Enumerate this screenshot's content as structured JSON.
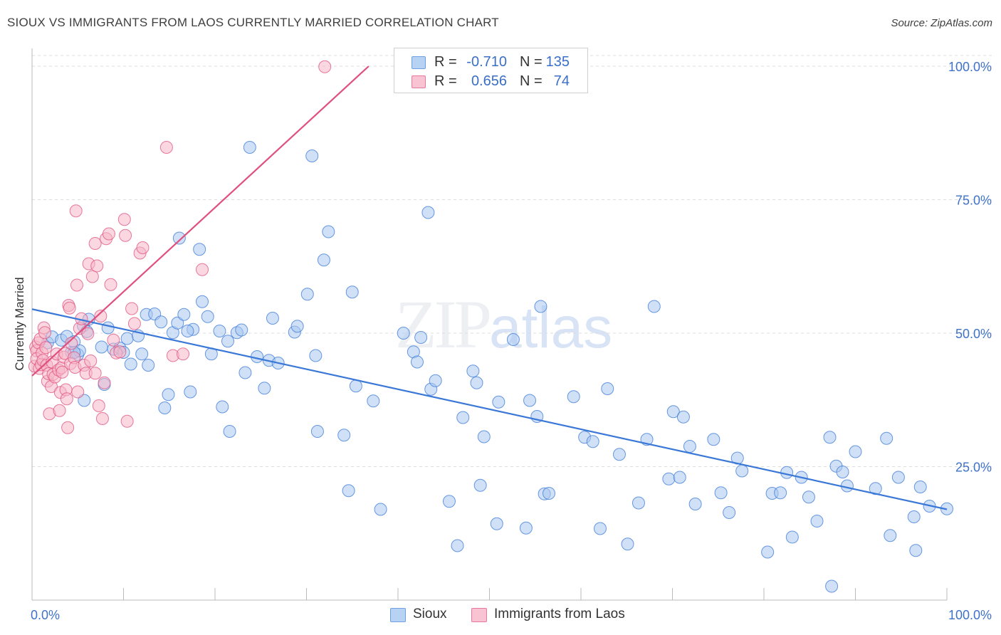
{
  "title": "SIOUX VS IMMIGRANTS FROM LAOS CURRENTLY MARRIED CORRELATION CHART",
  "source": "Source: ZipAtlas.com",
  "watermark": {
    "zip": "ZIP",
    "atlas": "atlas"
  },
  "stats": [
    {
      "r_label": "R =",
      "r_value": "-0.710",
      "n_label": "N =",
      "n_value": "135",
      "color": "#6f9fe0",
      "fill": "#b8d2f4"
    },
    {
      "r_label": "R =",
      "r_value": "0.656",
      "n_label": "N =",
      "n_value": "74",
      "color": "#e9799c",
      "fill": "#f8c4d4"
    }
  ],
  "legend": [
    {
      "label": "Sioux",
      "color": "#6f9fe0",
      "fill": "#b8d2f4"
    },
    {
      "label": "Immigrants from Laos",
      "color": "#e9799c",
      "fill": "#f8c4d4"
    }
  ],
  "chart_data": {
    "type": "scatter",
    "title": "SIOUX VS IMMIGRANTS FROM LAOS CURRENTLY MARRIED CORRELATION CHART",
    "xlabel": "",
    "ylabel": "Currently Married",
    "xlim": [
      0,
      100
    ],
    "ylim": [
      0,
      102
    ],
    "x_tick_labels": [
      "0.0%",
      "100.0%"
    ],
    "y_ticks": [
      25,
      50,
      75,
      100
    ],
    "y_tick_labels": [
      "25.0%",
      "50.0%",
      "75.0%",
      "100.0%"
    ],
    "grid": true,
    "series": [
      {
        "name": "Sioux",
        "color": "#3a78d8",
        "fill": "#a9c8f0",
        "trend": {
          "x": [
            0,
            100
          ],
          "y": [
            54.5,
            17.0
          ]
        },
        "points": [
          [
            1.7,
            48.2
          ],
          [
            2.2,
            49.3
          ],
          [
            3.2,
            48.7
          ],
          [
            3.8,
            49.4
          ],
          [
            4.3,
            46.4
          ],
          [
            4.6,
            48.4
          ],
          [
            5.0,
            46.0
          ],
          [
            5.2,
            46.7
          ],
          [
            5.6,
            51.4
          ],
          [
            5.7,
            37.4
          ],
          [
            6.0,
            50.3
          ],
          [
            6.2,
            52.6
          ],
          [
            7.6,
            47.4
          ],
          [
            7.9,
            40.4
          ],
          [
            8.3,
            51.0
          ],
          [
            8.9,
            47.0
          ],
          [
            9.6,
            47.2
          ],
          [
            10.0,
            46.4
          ],
          [
            10.4,
            49.0
          ],
          [
            10.8,
            44.2
          ],
          [
            11.6,
            49.5
          ],
          [
            12.0,
            46.1
          ],
          [
            12.5,
            53.5
          ],
          [
            12.7,
            44.0
          ],
          [
            13.4,
            53.6
          ],
          [
            14.1,
            52.1
          ],
          [
            14.5,
            36.0
          ],
          [
            14.9,
            38.5
          ],
          [
            15.4,
            50.1
          ],
          [
            15.9,
            51.9
          ],
          [
            16.1,
            67.8
          ],
          [
            16.6,
            53.5
          ],
          [
            17.3,
            39.0
          ],
          [
            17.6,
            50.7
          ],
          [
            18.3,
            65.7
          ],
          [
            18.6,
            55.9
          ],
          [
            19.2,
            53.1
          ],
          [
            19.6,
            46.1
          ],
          [
            20.5,
            50.4
          ],
          [
            20.8,
            36.2
          ],
          [
            21.4,
            48.5
          ],
          [
            21.6,
            31.6
          ],
          [
            22.4,
            50.1
          ],
          [
            22.9,
            50.6
          ],
          [
            23.3,
            42.6
          ],
          [
            23.8,
            84.8
          ],
          [
            24.6,
            45.6
          ],
          [
            25.4,
            39.7
          ],
          [
            25.9,
            44.9
          ],
          [
            26.3,
            52.8
          ],
          [
            26.9,
            44.4
          ],
          [
            28.7,
            50.2
          ],
          [
            29.0,
            51.3
          ],
          [
            30.1,
            57.3
          ],
          [
            30.6,
            83.2
          ],
          [
            31.0,
            45.8
          ],
          [
            31.2,
            31.6
          ],
          [
            31.9,
            63.7
          ],
          [
            32.4,
            69.0
          ],
          [
            34.1,
            30.9
          ],
          [
            34.6,
            20.5
          ],
          [
            35.0,
            57.7
          ],
          [
            35.4,
            40.1
          ],
          [
            37.3,
            37.3
          ],
          [
            38.1,
            17.0
          ],
          [
            40.6,
            50.0
          ],
          [
            41.7,
            46.5
          ],
          [
            42.1,
            44.6
          ],
          [
            42.5,
            49.2
          ],
          [
            43.3,
            72.6
          ],
          [
            43.6,
            39.5
          ],
          [
            44.1,
            41.1
          ],
          [
            45.6,
            18.5
          ],
          [
            46.5,
            10.2
          ],
          [
            47.1,
            34.2
          ],
          [
            48.2,
            42.9
          ],
          [
            48.6,
            40.7
          ],
          [
            49.0,
            21.5
          ],
          [
            49.4,
            30.6
          ],
          [
            50.8,
            14.3
          ],
          [
            51.0,
            37.1
          ],
          [
            52.6,
            48.8
          ],
          [
            54.0,
            13.5
          ],
          [
            54.4,
            37.4
          ],
          [
            55.2,
            34.4
          ],
          [
            55.6,
            55.0
          ],
          [
            56.0,
            19.9
          ],
          [
            56.5,
            20.0
          ],
          [
            59.2,
            38.1
          ],
          [
            60.4,
            30.5
          ],
          [
            61.3,
            29.7
          ],
          [
            62.1,
            13.4
          ],
          [
            62.9,
            39.6
          ],
          [
            64.2,
            27.3
          ],
          [
            65.1,
            10.5
          ],
          [
            66.3,
            18.2
          ],
          [
            67.2,
            30.1
          ],
          [
            68.0,
            55.0
          ],
          [
            69.6,
            22.7
          ],
          [
            70.1,
            35.3
          ],
          [
            70.8,
            23.0
          ],
          [
            71.2,
            34.3
          ],
          [
            71.9,
            28.8
          ],
          [
            72.5,
            18.0
          ],
          [
            74.5,
            30.1
          ],
          [
            75.3,
            20.1
          ],
          [
            76.2,
            16.4
          ],
          [
            77.1,
            26.6
          ],
          [
            77.6,
            24.2
          ],
          [
            80.4,
            9.0
          ],
          [
            80.9,
            20.0
          ],
          [
            81.8,
            20.1
          ],
          [
            82.5,
            23.9
          ],
          [
            83.1,
            11.8
          ],
          [
            84.1,
            23.0
          ],
          [
            84.9,
            19.3
          ],
          [
            85.8,
            14.8
          ],
          [
            87.2,
            30.5
          ],
          [
            87.4,
            2.6
          ],
          [
            87.9,
            25.1
          ],
          [
            88.6,
            24.0
          ],
          [
            89.1,
            21.4
          ],
          [
            90.0,
            27.8
          ],
          [
            92.2,
            20.9
          ],
          [
            93.4,
            30.3
          ],
          [
            93.8,
            12.1
          ],
          [
            94.7,
            23.0
          ],
          [
            96.4,
            15.6
          ],
          [
            96.6,
            9.3
          ],
          [
            97.1,
            21.2
          ],
          [
            98.1,
            17.6
          ],
          [
            100.0,
            17.1
          ],
          [
            4.6,
            46.4
          ],
          [
            17.0,
            50.4
          ]
        ]
      },
      {
        "name": "Immigrants from Laos",
        "color": "#e0507e",
        "fill": "#f6b6c9",
        "trend": {
          "x": [
            0,
            36.8
          ],
          "y": [
            42.0,
            100.0
          ]
        },
        "points": [
          [
            0.3,
            43.8
          ],
          [
            0.4,
            47.4
          ],
          [
            0.5,
            46.7
          ],
          [
            0.5,
            45.2
          ],
          [
            0.7,
            48.2
          ],
          [
            0.8,
            43.4
          ],
          [
            0.9,
            48.9
          ],
          [
            1.0,
            44.1
          ],
          [
            1.1,
            46.3
          ],
          [
            1.2,
            44.9
          ],
          [
            1.3,
            51.0
          ],
          [
            1.4,
            50.1
          ],
          [
            1.5,
            47.3
          ],
          [
            1.6,
            44.0
          ],
          [
            1.7,
            41.0
          ],
          [
            1.8,
            42.4
          ],
          [
            1.9,
            34.9
          ],
          [
            2.1,
            40.0
          ],
          [
            2.2,
            44.6
          ],
          [
            2.3,
            42.3
          ],
          [
            2.5,
            41.8
          ],
          [
            2.7,
            46.1
          ],
          [
            2.9,
            43.1
          ],
          [
            3.0,
            35.5
          ],
          [
            3.1,
            38.9
          ],
          [
            3.2,
            43.5
          ],
          [
            3.3,
            42.7
          ],
          [
            3.5,
            45.5
          ],
          [
            3.6,
            46.2
          ],
          [
            3.7,
            39.4
          ],
          [
            3.8,
            37.7
          ],
          [
            3.9,
            32.3
          ],
          [
            4.0,
            55.2
          ],
          [
            4.1,
            54.7
          ],
          [
            4.2,
            44.3
          ],
          [
            4.3,
            48.1
          ],
          [
            4.6,
            45.4
          ],
          [
            4.7,
            43.6
          ],
          [
            4.8,
            72.9
          ],
          [
            4.9,
            59.0
          ],
          [
            5.0,
            39.0
          ],
          [
            5.2,
            50.9
          ],
          [
            5.4,
            52.7
          ],
          [
            5.7,
            44.0
          ],
          [
            5.9,
            42.5
          ],
          [
            6.1,
            49.9
          ],
          [
            6.2,
            63.0
          ],
          [
            6.4,
            44.8
          ],
          [
            6.6,
            60.6
          ],
          [
            6.9,
            66.8
          ],
          [
            7.1,
            62.6
          ],
          [
            7.3,
            36.4
          ],
          [
            7.5,
            53.2
          ],
          [
            7.7,
            34.0
          ],
          [
            7.9,
            40.7
          ],
          [
            8.1,
            67.7
          ],
          [
            8.4,
            68.6
          ],
          [
            8.6,
            59.1
          ],
          [
            8.9,
            48.7
          ],
          [
            9.2,
            46.3
          ],
          [
            9.6,
            46.5
          ],
          [
            10.1,
            71.3
          ],
          [
            10.2,
            68.3
          ],
          [
            10.4,
            33.5
          ],
          [
            10.9,
            54.6
          ],
          [
            11.2,
            51.8
          ],
          [
            11.8,
            65.0
          ],
          [
            12.1,
            66.0
          ],
          [
            14.7,
            84.8
          ],
          [
            15.4,
            45.8
          ],
          [
            16.5,
            46.1
          ],
          [
            18.6,
            61.9
          ],
          [
            32.0,
            99.9
          ],
          [
            6.9,
            42.5
          ]
        ]
      }
    ]
  }
}
